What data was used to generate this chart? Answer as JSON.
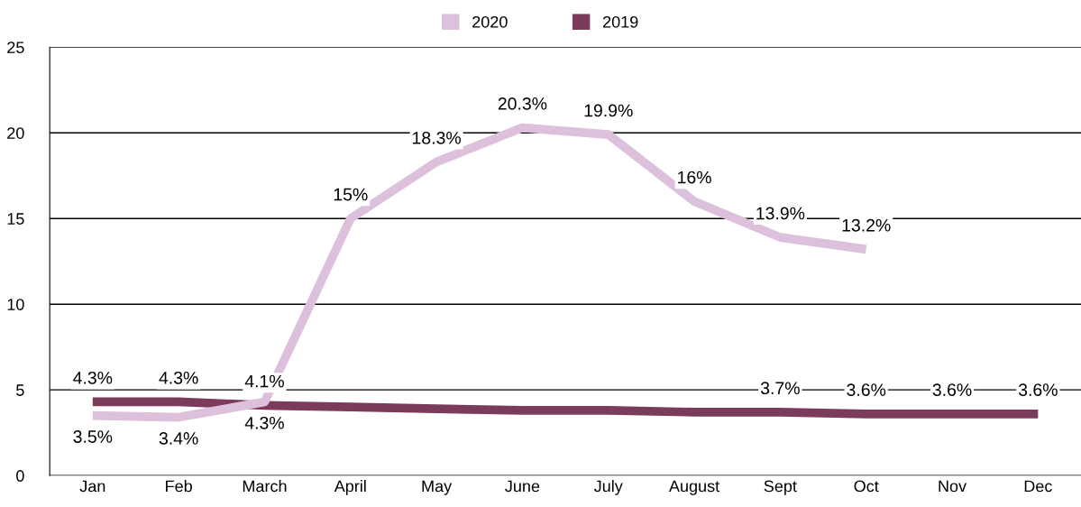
{
  "chart_data": {
    "type": "line",
    "categories": [
      "Jan",
      "Feb",
      "March",
      "April",
      "May",
      "June",
      "July",
      "August",
      "Sept",
      "Oct",
      "Nov",
      "Dec"
    ],
    "series": [
      {
        "name": "2020",
        "color": "#dcc0dc",
        "values": [
          3.5,
          3.4,
          4.3,
          15,
          18.3,
          20.3,
          19.9,
          16,
          13.9,
          13.2,
          null,
          null
        ],
        "value_labels": [
          "3.5%",
          "3.4%",
          "4.3%",
          "15%",
          "18.3%",
          "20.3%",
          "19.9%",
          "16%",
          "13.9%",
          "13.2%",
          null,
          null
        ]
      },
      {
        "name": "2019",
        "color": "#7b3b5a",
        "values": [
          4.3,
          4.3,
          4.1,
          4.0,
          3.9,
          3.8,
          3.8,
          3.7,
          3.7,
          3.6,
          3.6,
          3.6
        ],
        "value_labels": [
          "4.3%",
          "4.3%",
          "4.1%",
          null,
          null,
          null,
          null,
          null,
          "3.7%",
          "3.6%",
          "3.6%",
          "3.6%"
        ]
      }
    ],
    "ylim": [
      0,
      25
    ],
    "yticks": [
      0,
      5,
      10,
      15,
      20,
      25
    ],
    "grid": "y",
    "legend": "top",
    "marker": "none",
    "line_style": "solid"
  }
}
